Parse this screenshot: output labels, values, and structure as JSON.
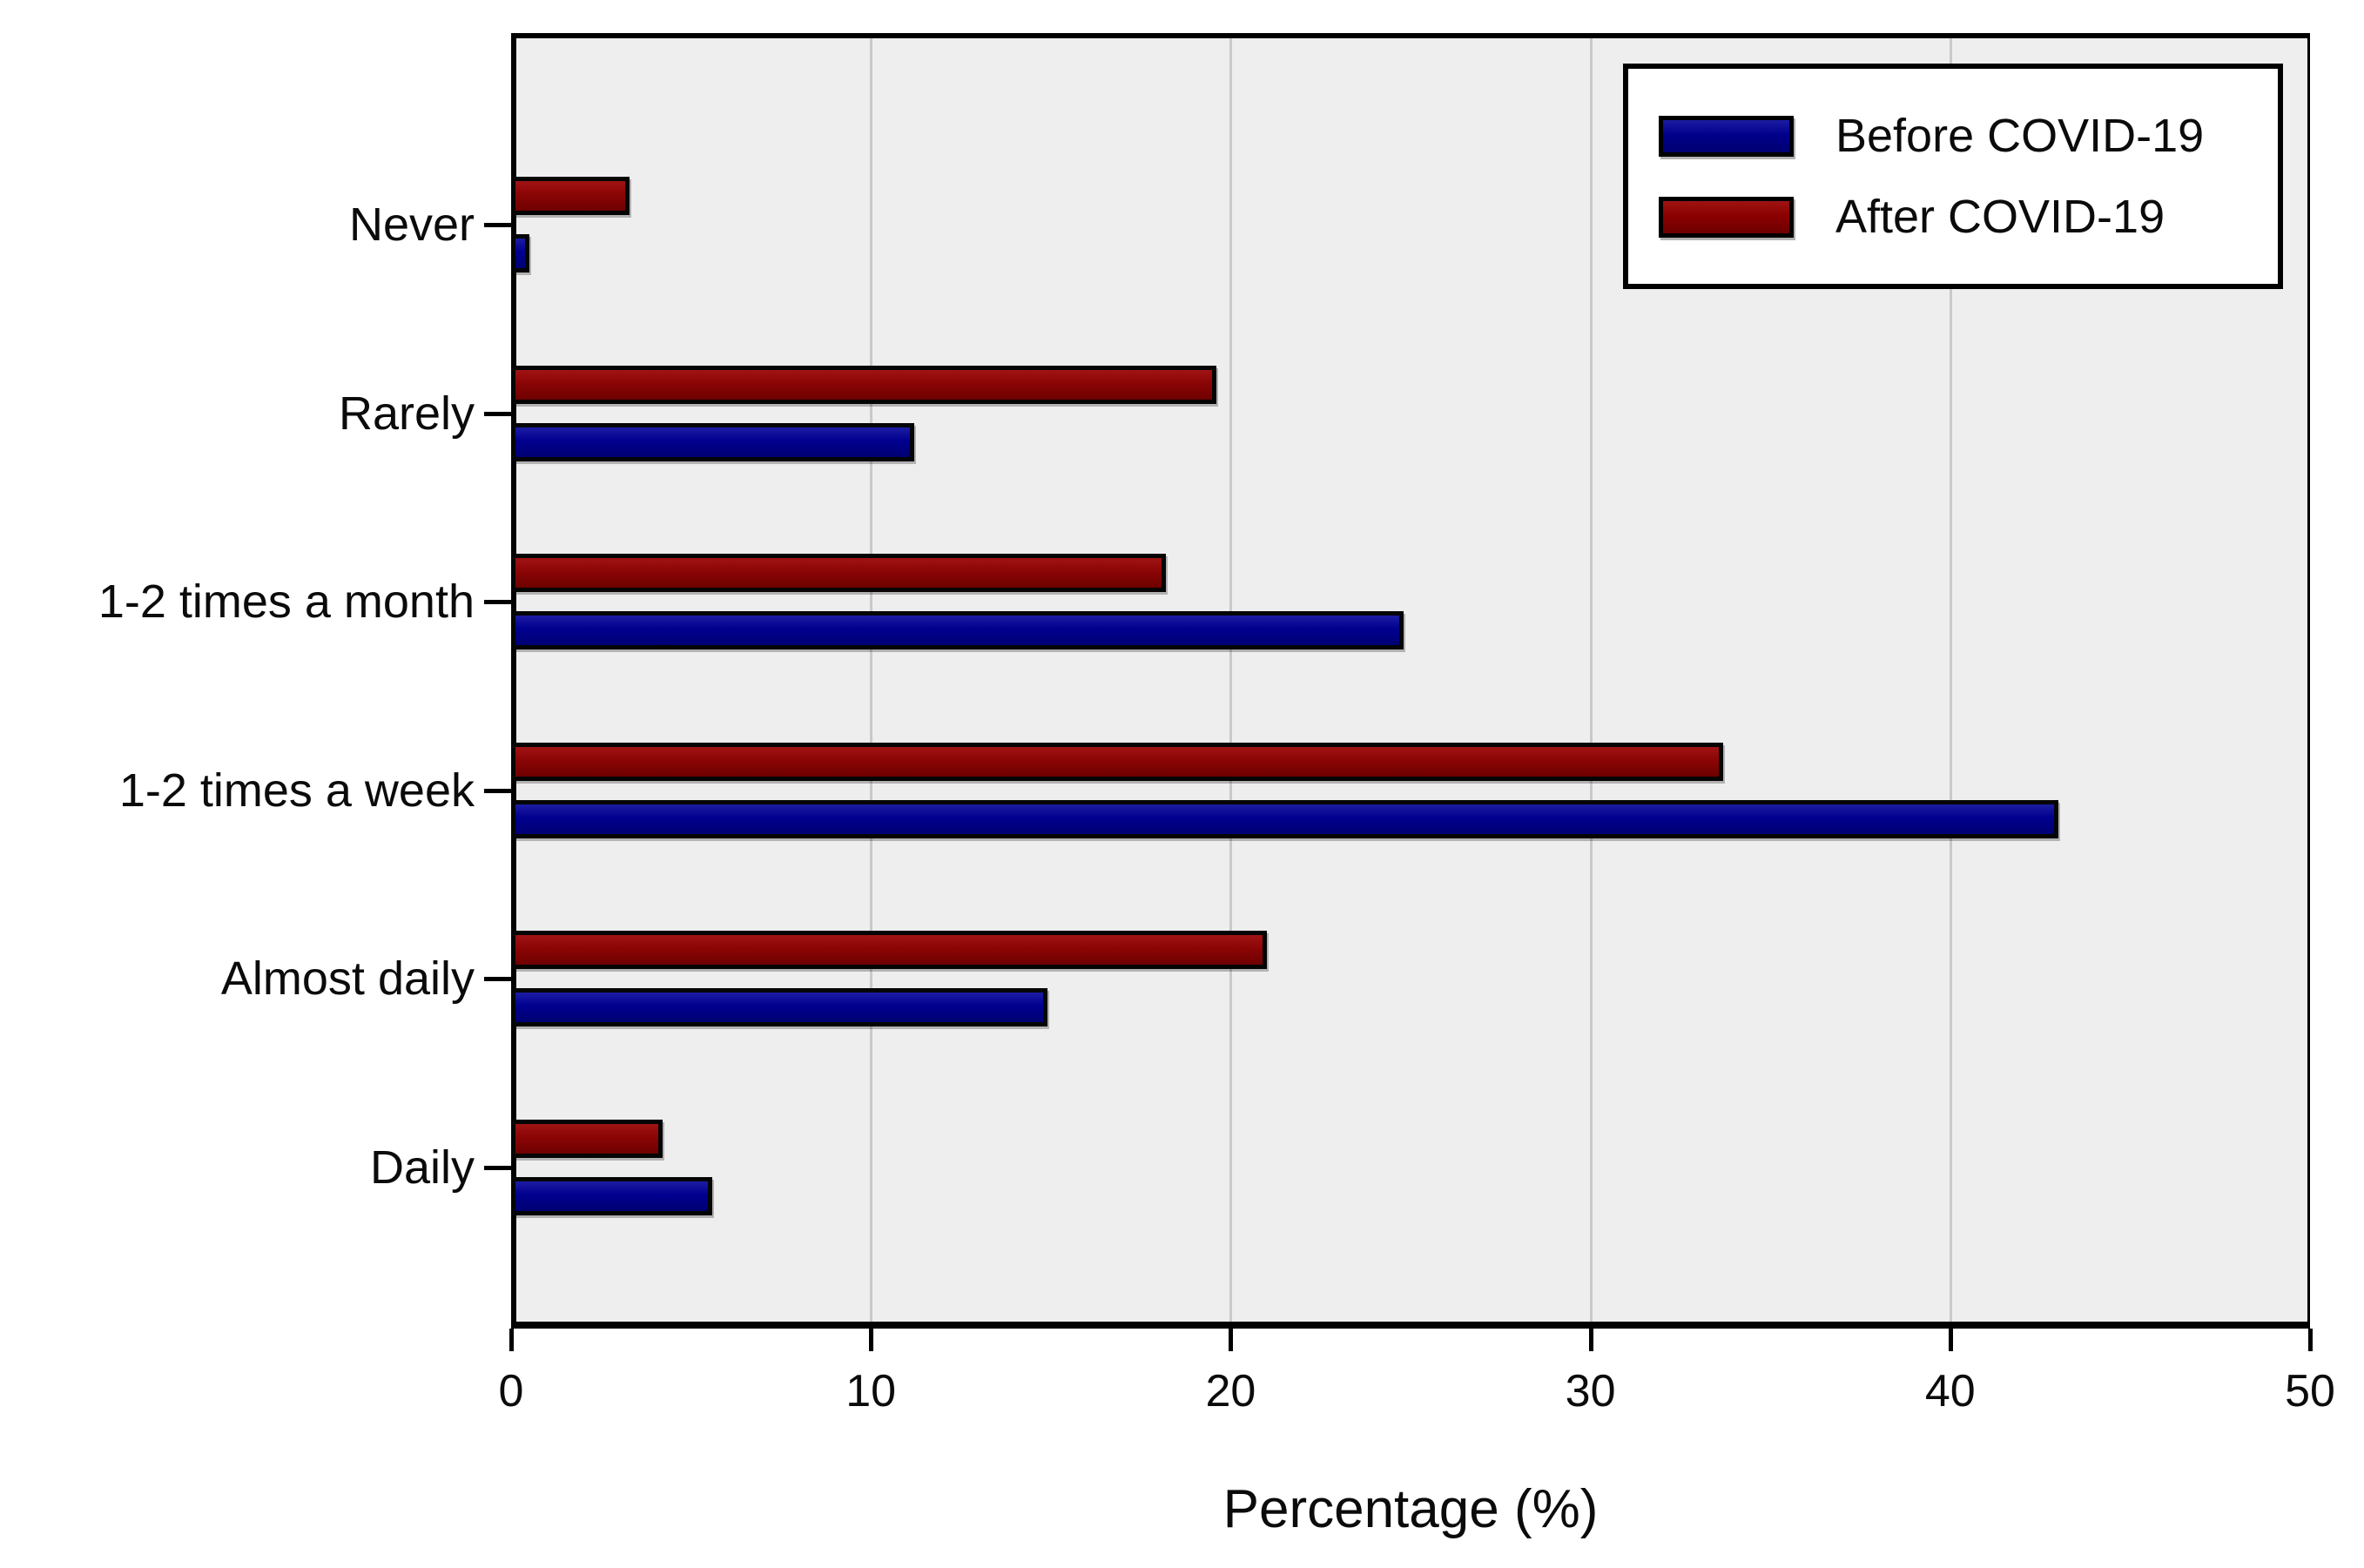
{
  "chart_data": {
    "type": "bar",
    "orientation": "horizontal",
    "title": "",
    "xlabel": "Percentage (%)",
    "ylabel": "",
    "xlim": [
      0,
      50
    ],
    "xticks": [
      0,
      10,
      20,
      30,
      40,
      50
    ],
    "grid": "vertical",
    "legend_position": "top-right",
    "plot_background": "#eeeeee",
    "gridline_color": "#c9c9c9",
    "categories": [
      "Never",
      "Rarely",
      "1-2 times a month",
      "1-2 times a week",
      "Almost daily",
      "Daily"
    ],
    "series": [
      {
        "name": "Before COVID-19",
        "color": "#00008B",
        "values": [
          0.5,
          11.2,
          24.8,
          43.0,
          14.9,
          5.6
        ]
      },
      {
        "name": "After COVID-19",
        "color": "#8B0000",
        "values": [
          3.3,
          19.6,
          18.2,
          33.7,
          21.0,
          4.2
        ]
      }
    ]
  }
}
